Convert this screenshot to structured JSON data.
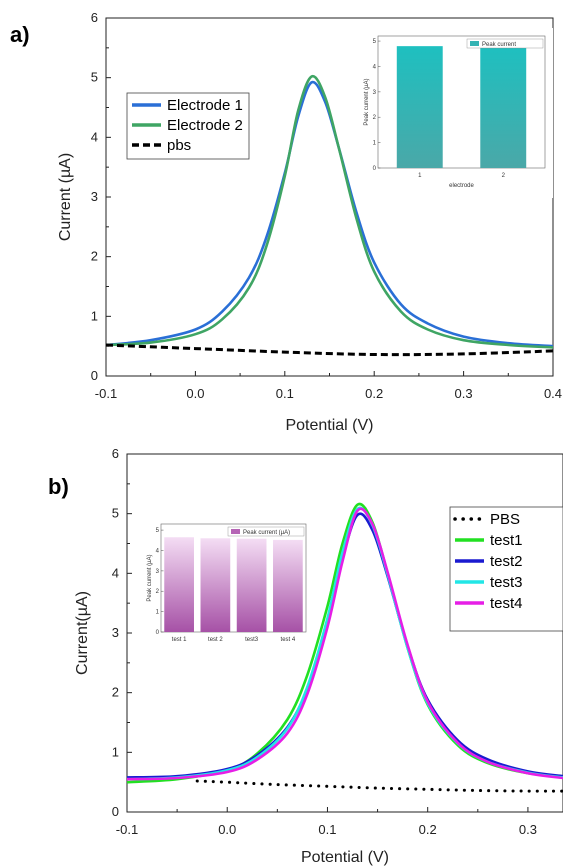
{
  "chart_data": [
    {
      "type": "line",
      "panel_label": "a)",
      "xlabel": "Potential (V)",
      "ylabel": "Current (µA)",
      "xlim": [
        -0.1,
        0.4
      ],
      "ylim": [
        0,
        6
      ],
      "xticks": [
        "-0.1",
        "0.0",
        "0.1",
        "0.2",
        "0.3",
        "0.4"
      ],
      "yticks": [
        "0",
        "1",
        "2",
        "3",
        "4",
        "5",
        "6"
      ],
      "legend_position": "upper-left",
      "series": [
        {
          "name": "Electrode 1",
          "color": "#2a6fd6",
          "dash": "solid",
          "x": [
            -0.1,
            -0.05,
            0.0,
            0.03,
            0.06,
            0.08,
            0.1,
            0.115,
            0.13,
            0.145,
            0.16,
            0.18,
            0.2,
            0.23,
            0.26,
            0.3,
            0.35,
            0.4
          ],
          "y": [
            0.52,
            0.6,
            0.78,
            1.08,
            1.65,
            2.35,
            3.4,
            4.35,
            4.92,
            4.6,
            3.85,
            2.75,
            1.9,
            1.2,
            0.88,
            0.66,
            0.55,
            0.5
          ]
        },
        {
          "name": "Electrode 2",
          "color": "#3fa564",
          "dash": "solid",
          "x": [
            -0.1,
            -0.05,
            0.0,
            0.03,
            0.06,
            0.08,
            0.1,
            0.115,
            0.13,
            0.145,
            0.16,
            0.18,
            0.2,
            0.23,
            0.26,
            0.3,
            0.35,
            0.4
          ],
          "y": [
            0.52,
            0.56,
            0.7,
            0.95,
            1.48,
            2.2,
            3.35,
            4.45,
            5.02,
            4.68,
            3.85,
            2.65,
            1.75,
            1.08,
            0.78,
            0.6,
            0.52,
            0.48
          ]
        },
        {
          "name": "pbs",
          "color": "#000000",
          "dash": "dashed",
          "x": [
            -0.1,
            0.0,
            0.1,
            0.2,
            0.3,
            0.4
          ],
          "y": [
            0.52,
            0.46,
            0.4,
            0.36,
            0.37,
            0.42
          ]
        }
      ],
      "inset": {
        "type": "bar",
        "legend": "Peak current",
        "ylabel": "Peak current (µA)",
        "xlabel": "electrode",
        "categories": [
          "1",
          "2"
        ],
        "values": [
          4.8,
          4.8
        ],
        "ylim": [
          0,
          5.2
        ],
        "yticks": [
          "0",
          "1",
          "2",
          "3",
          "4",
          "5"
        ],
        "color": "#33b3b3"
      }
    },
    {
      "type": "line",
      "panel_label": "b)",
      "xlabel": "Potential (V)",
      "ylabel": "Current(µA)",
      "xlim": [
        -0.1,
        0.335
      ],
      "ylim": [
        0,
        6
      ],
      "xticks": [
        "-0.1",
        "0.0",
        "0.1",
        "0.2",
        "0.3"
      ],
      "yticks": [
        "0",
        "1",
        "2",
        "3",
        "4",
        "5",
        "6"
      ],
      "legend_position": "right",
      "series": [
        {
          "name": "PBS",
          "color": "#000000",
          "dash": "dotted",
          "x": [
            -0.03,
            0.0,
            0.05,
            0.1,
            0.15,
            0.2,
            0.25,
            0.3,
            0.335
          ],
          "y": [
            0.52,
            0.5,
            0.46,
            0.43,
            0.4,
            0.38,
            0.36,
            0.35,
            0.35
          ]
        },
        {
          "name": "test1",
          "color": "#22e022",
          "dash": "solid",
          "x": [
            -0.1,
            -0.05,
            0.0,
            0.03,
            0.06,
            0.08,
            0.1,
            0.115,
            0.13,
            0.145,
            0.16,
            0.18,
            0.2,
            0.23,
            0.26,
            0.3,
            0.335
          ],
          "y": [
            0.5,
            0.55,
            0.7,
            0.98,
            1.55,
            2.3,
            3.45,
            4.5,
            5.15,
            4.85,
            4.0,
            2.75,
            1.8,
            1.12,
            0.82,
            0.65,
            0.6
          ]
        },
        {
          "name": "test2",
          "color": "#1a1ad0",
          "dash": "solid",
          "x": [
            -0.1,
            -0.05,
            0.0,
            0.03,
            0.06,
            0.08,
            0.1,
            0.115,
            0.13,
            0.145,
            0.16,
            0.18,
            0.2,
            0.23,
            0.26,
            0.3,
            0.335
          ],
          "y": [
            0.58,
            0.6,
            0.72,
            0.95,
            1.42,
            2.08,
            3.2,
            4.25,
            4.98,
            4.72,
            3.95,
            2.78,
            1.88,
            1.2,
            0.88,
            0.68,
            0.6
          ]
        },
        {
          "name": "test3",
          "color": "#22e6e6",
          "dash": "solid",
          "x": [
            -0.1,
            -0.05,
            0.0,
            0.03,
            0.06,
            0.08,
            0.1,
            0.115,
            0.13,
            0.145,
            0.16,
            0.18,
            0.2,
            0.23,
            0.26,
            0.3,
            0.335
          ],
          "y": [
            0.55,
            0.58,
            0.7,
            0.92,
            1.4,
            2.1,
            3.25,
            4.35,
            5.08,
            4.8,
            3.98,
            2.75,
            1.82,
            1.15,
            0.84,
            0.66,
            0.58
          ]
        },
        {
          "name": "test4",
          "color": "#e61ee6",
          "dash": "solid",
          "x": [
            -0.1,
            -0.05,
            0.0,
            0.03,
            0.06,
            0.08,
            0.1,
            0.115,
            0.13,
            0.145,
            0.16,
            0.18,
            0.2,
            0.23,
            0.26,
            0.3,
            0.335
          ],
          "y": [
            0.55,
            0.57,
            0.67,
            0.88,
            1.32,
            1.98,
            3.1,
            4.2,
            5.05,
            4.82,
            4.02,
            2.8,
            1.85,
            1.16,
            0.84,
            0.65,
            0.57
          ]
        }
      ],
      "inset": {
        "type": "bar",
        "legend": "Peak current (µA)",
        "ylabel": "Peak current (µA)",
        "xlabel": "",
        "categories": [
          "test 1",
          "test 2",
          "test3",
          "test 4"
        ],
        "values": [
          4.65,
          4.6,
          4.58,
          4.52
        ],
        "ylim": [
          0,
          5.3
        ],
        "yticks": [
          "0",
          "1",
          "2",
          "3",
          "4",
          "5"
        ],
        "color": "#b565b5"
      }
    }
  ]
}
